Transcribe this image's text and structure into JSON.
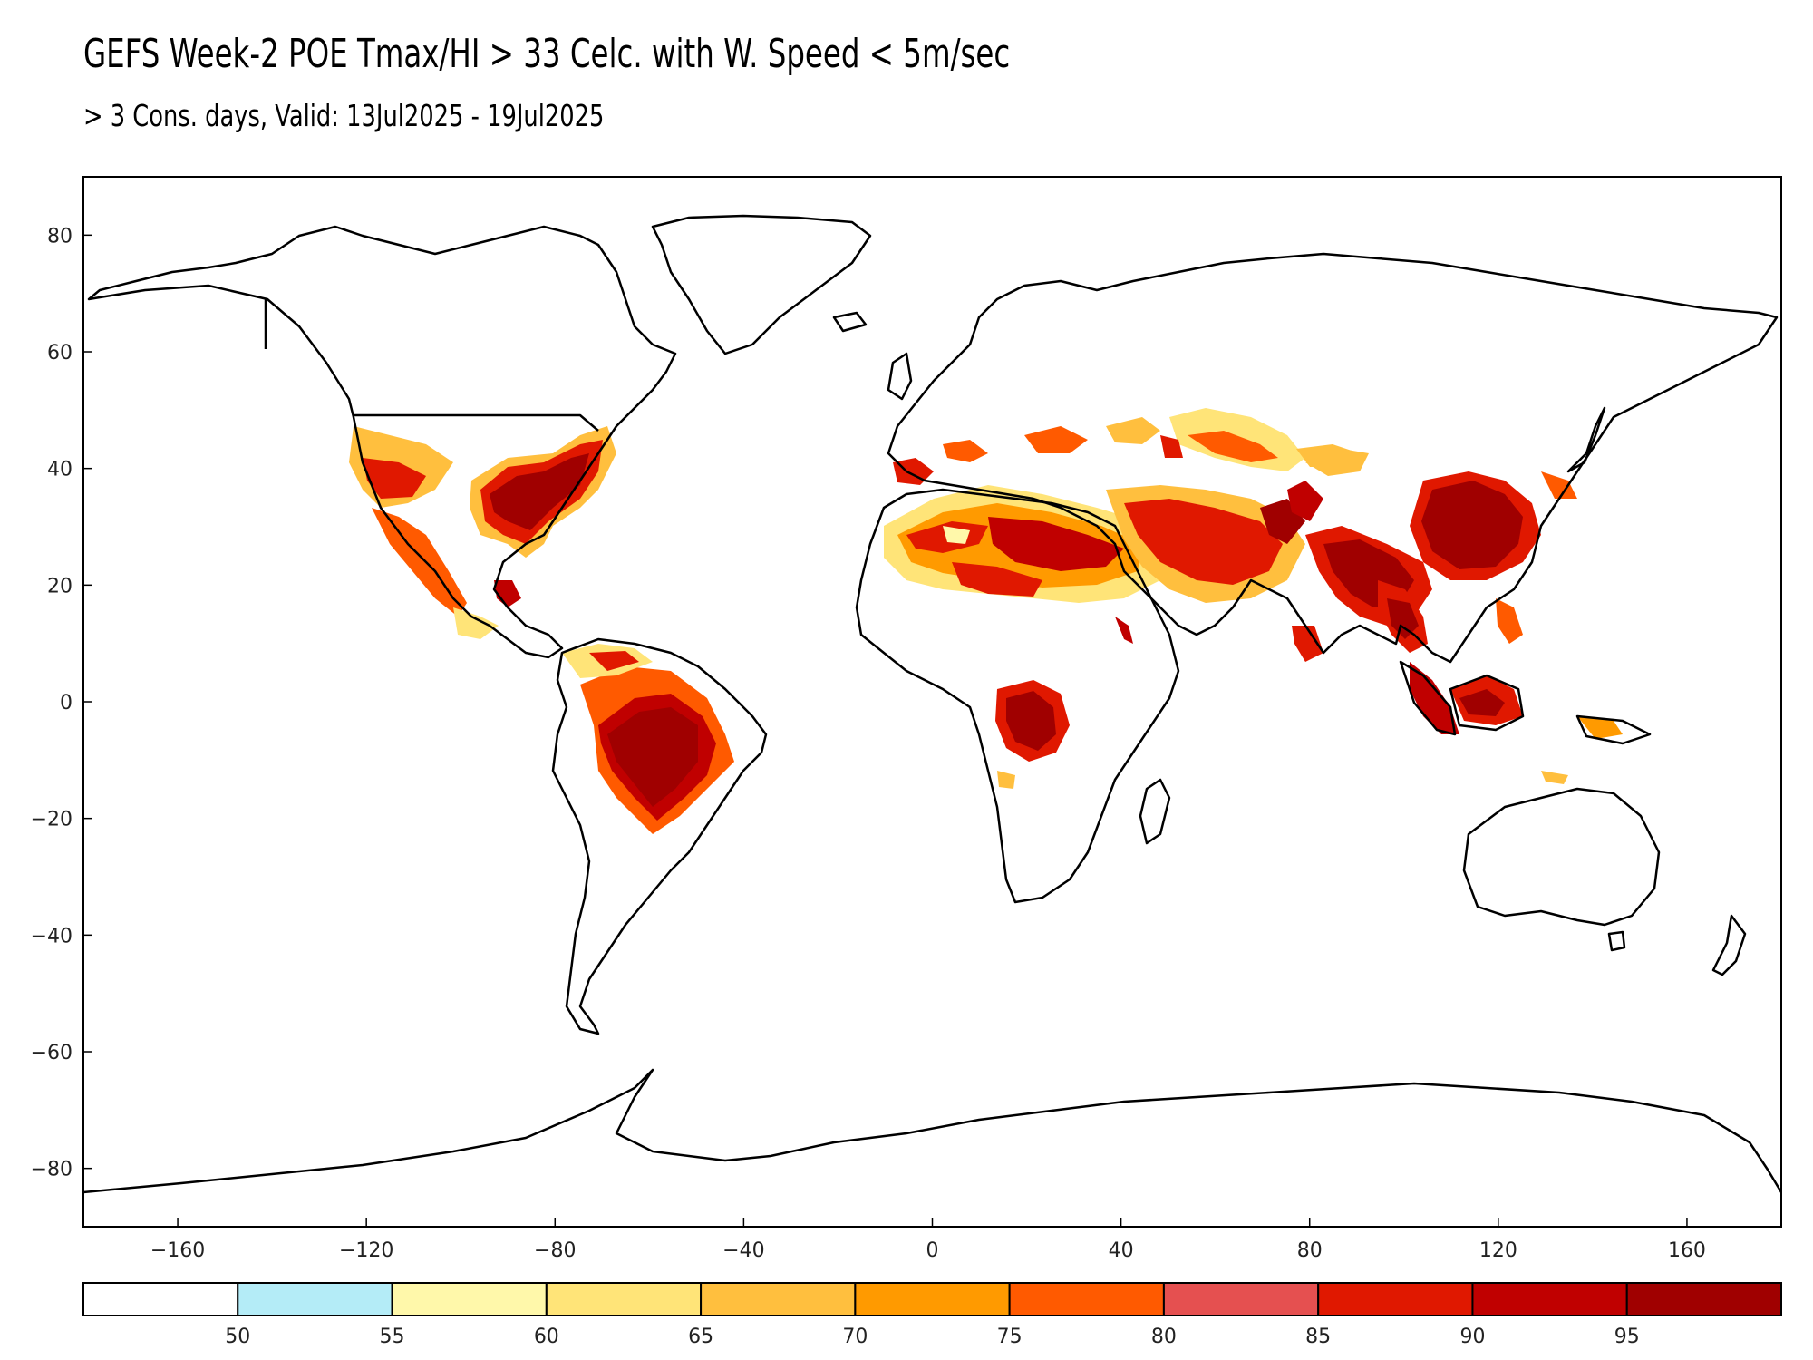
{
  "title": "GEFS Week-2 POE Tmax/HI > 33 Celc. with W. Speed < 5m/sec",
  "subtitle": "> 3 Cons. days, Valid: 13Jul2025 - 19Jul2025",
  "map": {
    "lon_range": [
      -180,
      180
    ],
    "lat_range": [
      -90,
      90
    ],
    "x_ticks": [
      -160,
      -120,
      -80,
      -40,
      0,
      40,
      80,
      120,
      160
    ],
    "x_tick_labels": [
      "−160",
      "−120",
      "−80",
      "−40",
      "0",
      "40",
      "80",
      "120",
      "160"
    ],
    "y_ticks": [
      80,
      60,
      40,
      20,
      0,
      -20,
      -40,
      -60,
      -80
    ],
    "y_tick_labels": [
      "80",
      "60",
      "40",
      "20",
      "0",
      "−20",
      "−40",
      "−60",
      "−80"
    ]
  },
  "colorbar": {
    "thresholds": [
      "50",
      "55",
      "60",
      "65",
      "70",
      "75",
      "80",
      "85",
      "90",
      "95"
    ],
    "colors": [
      "#ffffff",
      "#b4ecf7",
      "#fff8aa",
      "#ffe478",
      "#ffbf3e",
      "#ff9a00",
      "#ff5a00",
      "#e55050",
      "#e01800",
      "#c00000",
      "#a00000"
    ]
  },
  "colors": {
    "outline": "#000000",
    "background": "#ffffff"
  }
}
